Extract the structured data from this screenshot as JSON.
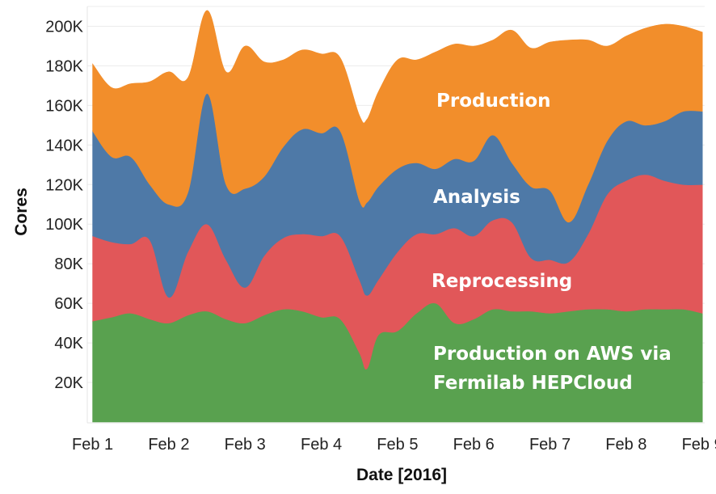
{
  "chart_data": {
    "type": "area",
    "stacked": true,
    "xlabel": "Date [2016]",
    "ylabel": "Cores",
    "ylim": [
      0,
      210000
    ],
    "y_ticks": [
      20000,
      40000,
      60000,
      80000,
      100000,
      120000,
      140000,
      160000,
      180000,
      200000
    ],
    "y_tick_labels": [
      "20K",
      "40K",
      "60K",
      "80K",
      "100K",
      "120K",
      "140K",
      "160K",
      "180K",
      "200K"
    ],
    "x_range": [
      0.93,
      9.03
    ],
    "x_ticks": [
      1,
      2,
      3,
      4,
      5,
      6,
      7,
      8,
      9
    ],
    "x_tick_labels": [
      "Feb 1",
      "Feb 2",
      "Feb 3",
      "Feb 4",
      "Feb 5",
      "Feb 6",
      "Feb 7",
      "Feb 8",
      "Feb 9"
    ],
    "grid": true,
    "x": [
      1.0,
      1.25,
      1.5,
      1.75,
      2.0,
      2.25,
      2.5,
      2.75,
      3.0,
      3.25,
      3.5,
      3.75,
      4.0,
      4.25,
      4.5,
      4.6,
      4.75,
      5.0,
      5.25,
      5.5,
      5.75,
      6.0,
      6.25,
      6.5,
      6.75,
      7.0,
      7.25,
      7.5,
      7.75,
      8.0,
      8.25,
      8.5,
      8.75,
      9.0
    ],
    "series": [
      {
        "name": "Production on AWS via Fermilab HEPCloud",
        "color": "#59a14f",
        "values": [
          51000,
          53000,
          55000,
          52000,
          50000,
          54000,
          56000,
          52000,
          50000,
          54000,
          57000,
          56000,
          53000,
          52000,
          35000,
          27000,
          44000,
          46000,
          55000,
          60000,
          50000,
          52000,
          57000,
          56000,
          56000,
          55000,
          56000,
          57000,
          57000,
          56000,
          57000,
          57000,
          57000,
          55000
        ]
      },
      {
        "name": "Reprocessing",
        "color": "#e15759",
        "values": [
          43000,
          38000,
          35000,
          40000,
          13000,
          32000,
          44000,
          30000,
          18000,
          30000,
          36000,
          39000,
          41000,
          42000,
          37000,
          37000,
          28000,
          40000,
          40000,
          35000,
          48000,
          42000,
          45000,
          45000,
          27000,
          27000,
          25000,
          38000,
          58000,
          66000,
          68000,
          65000,
          63000,
          65000
        ]
      },
      {
        "name": "Analysis",
        "color": "#4e79a7",
        "values": [
          53000,
          43000,
          44000,
          28000,
          47000,
          30000,
          66000,
          38000,
          50000,
          40000,
          46000,
          53000,
          52000,
          53000,
          40000,
          47000,
          47000,
          42000,
          36000,
          33000,
          35000,
          38000,
          43000,
          30000,
          36000,
          35000,
          20000,
          25000,
          27000,
          30000,
          25000,
          30000,
          37000,
          37000
        ]
      },
      {
        "name": "Production",
        "color": "#f28e2b",
        "values": [
          34000,
          35000,
          37000,
          52000,
          67000,
          58000,
          42000,
          57000,
          72000,
          58000,
          44000,
          40000,
          40000,
          37000,
          43000,
          42000,
          48000,
          55000,
          52000,
          59000,
          58000,
          58000,
          48000,
          67000,
          70000,
          75000,
          92000,
          73000,
          48000,
          43000,
          49000,
          49000,
          43000,
          40000
        ]
      }
    ]
  }
}
